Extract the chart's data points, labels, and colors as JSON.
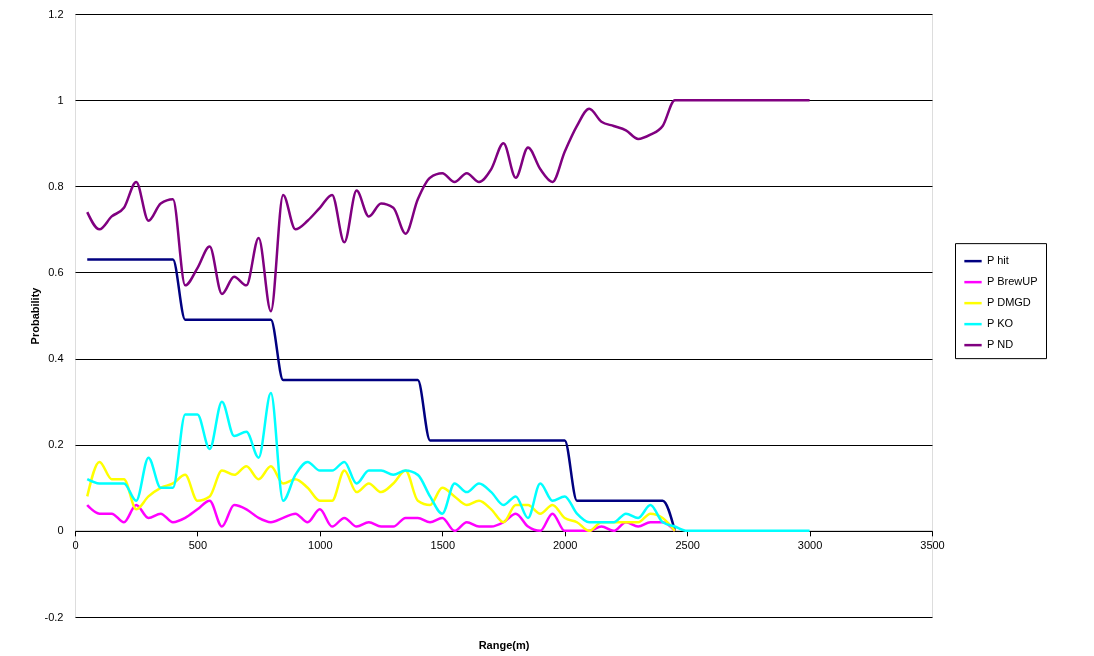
{
  "chart_data": {
    "type": "line",
    "xlabel": "Range(m)",
    "ylabel": "Probability",
    "x": [
      50,
      100,
      150,
      200,
      250,
      300,
      350,
      400,
      450,
      500,
      550,
      600,
      650,
      700,
      750,
      800,
      850,
      900,
      950,
      1000,
      1050,
      1100,
      1150,
      1200,
      1250,
      1300,
      1350,
      1400,
      1450,
      1500,
      1550,
      1600,
      1650,
      1700,
      1750,
      1800,
      1850,
      1900,
      1950,
      2000,
      2050,
      2100,
      2150,
      2200,
      2250,
      2300,
      2350,
      2400,
      2450,
      2500,
      2550,
      2600,
      2650,
      2700,
      2750,
      2800,
      2850,
      2900,
      2950,
      3000
    ],
    "series": [
      {
        "name": "P hit",
        "color": "#000080",
        "values": [
          0.63,
          0.63,
          0.63,
          0.63,
          0.63,
          0.63,
          0.63,
          0.63,
          0.49,
          0.49,
          0.49,
          0.49,
          0.49,
          0.49,
          0.49,
          0.49,
          0.35,
          0.35,
          0.35,
          0.35,
          0.35,
          0.35,
          0.35,
          0.35,
          0.35,
          0.35,
          0.35,
          0.35,
          0.21,
          0.21,
          0.21,
          0.21,
          0.21,
          0.21,
          0.21,
          0.21,
          0.21,
          0.21,
          0.21,
          0.21,
          0.07,
          0.07,
          0.07,
          0.07,
          0.07,
          0.07,
          0.07,
          0.07,
          0,
          null,
          null,
          null,
          null,
          null,
          null,
          null,
          null,
          null,
          null,
          null
        ]
      },
      {
        "name": "P BrewUP",
        "color": "#ff00ff",
        "values": [
          0.06,
          0.04,
          0.04,
          0.02,
          0.06,
          0.03,
          0.04,
          0.02,
          0.03,
          0.05,
          0.07,
          0.01,
          0.06,
          0.05,
          0.03,
          0.02,
          0.03,
          0.04,
          0.02,
          0.05,
          0.01,
          0.03,
          0.01,
          0.02,
          0.01,
          0.01,
          0.03,
          0.03,
          0.02,
          0.03,
          0,
          0.02,
          0.01,
          0.01,
          0.02,
          0.04,
          0.01,
          0,
          0.04,
          0,
          0,
          0,
          0.01,
          0,
          0.02,
          0.01,
          0.02,
          0.02,
          0,
          null,
          null,
          null,
          null,
          null,
          null,
          null,
          null,
          null,
          null,
          null
        ]
      },
      {
        "name": "P DMGD",
        "color": "#ffff00",
        "values": [
          0.08,
          0.16,
          0.12,
          0.12,
          0.05,
          0.08,
          0.1,
          0.11,
          0.13,
          0.07,
          0.08,
          0.14,
          0.13,
          0.15,
          0.12,
          0.15,
          0.11,
          0.12,
          0.1,
          0.07,
          0.07,
          0.14,
          0.09,
          0.11,
          0.09,
          0.11,
          0.14,
          0.07,
          0.06,
          0.1,
          0.08,
          0.06,
          0.07,
          0.05,
          0.02,
          0.06,
          0.06,
          0.04,
          0.06,
          0.03,
          0.02,
          0,
          0.02,
          0.02,
          0.02,
          0.02,
          0.04,
          0.03,
          0,
          null,
          null,
          null,
          null,
          null,
          null,
          null,
          null,
          null,
          null,
          null
        ]
      },
      {
        "name": "P KO",
        "color": "#00ffff",
        "values": [
          0.12,
          0.11,
          0.11,
          0.11,
          0.07,
          0.17,
          0.1,
          0.1,
          0.27,
          0.27,
          0.19,
          0.3,
          0.22,
          0.23,
          0.17,
          0.32,
          0.07,
          0.13,
          0.16,
          0.14,
          0.14,
          0.16,
          0.11,
          0.14,
          0.14,
          0.13,
          0.14,
          0.13,
          0.08,
          0.04,
          0.11,
          0.09,
          0.11,
          0.09,
          0.06,
          0.08,
          0.03,
          0.11,
          0.07,
          0.08,
          0.04,
          0.02,
          0.02,
          0.02,
          0.04,
          0.03,
          0.06,
          0.02,
          0.01,
          0,
          0,
          0,
          0,
          0,
          0,
          0,
          0,
          0,
          0,
          0
        ]
      },
      {
        "name": "P ND",
        "color": "#800080",
        "values": [
          0.74,
          0.7,
          0.73,
          0.75,
          0.81,
          0.72,
          0.76,
          0.77,
          0.57,
          0.61,
          0.66,
          0.55,
          0.59,
          0.57,
          0.68,
          0.51,
          0.78,
          0.7,
          0.72,
          0.75,
          0.78,
          0.67,
          0.79,
          0.73,
          0.76,
          0.75,
          0.69,
          0.77,
          0.82,
          0.83,
          0.81,
          0.83,
          0.81,
          0.84,
          0.9,
          0.82,
          0.89,
          0.84,
          0.81,
          0.88,
          0.94,
          0.98,
          0.95,
          0.94,
          0.93,
          0.91,
          0.92,
          0.94,
          1,
          1,
          1,
          1,
          1,
          1,
          1,
          1,
          1,
          1,
          1,
          1
        ]
      }
    ],
    "xlim": [
      0,
      3500
    ],
    "xticks": [
      0,
      500,
      1000,
      1500,
      2000,
      2500,
      3000,
      3500
    ],
    "ylim": [
      -0.2,
      1.2
    ],
    "yticks": [
      -0.2,
      0,
      0.2,
      0.4,
      0.6,
      0.8,
      1,
      1.2
    ],
    "grid": "y",
    "legend": "right",
    "marker": "none",
    "line_style": "solid"
  }
}
